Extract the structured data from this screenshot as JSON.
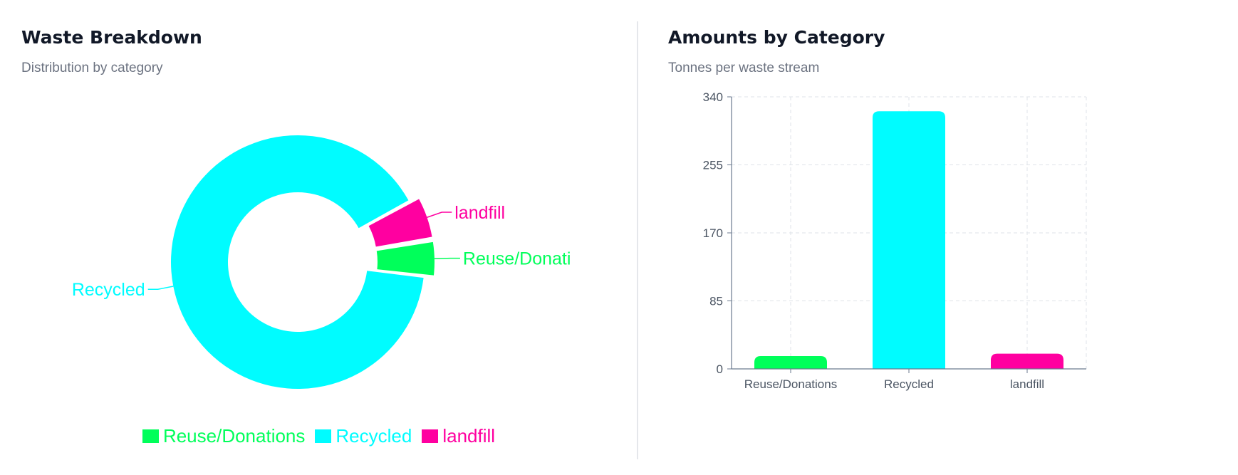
{
  "left_card": {
    "title": "Waste Breakdown",
    "subtitle": "Distribution by category"
  },
  "right_card": {
    "title": "Amounts by Category",
    "subtitle": "Tonnes per waste stream"
  },
  "colors": {
    "reuse": "#00ff5a",
    "recycled": "#00fcff",
    "landfill": "#ff00a0",
    "grid": "#dfe3e8",
    "axis": "#6b7a8f",
    "tick_text": "#4b5563"
  },
  "chart_data": [
    {
      "type": "pie",
      "variant": "donut",
      "title": "Waste Breakdown",
      "subtitle": "Distribution by category",
      "categories": [
        "Reuse/Donations",
        "Recycled",
        "landfill"
      ],
      "values": [
        16,
        322,
        19
      ],
      "slice_labels": [
        "Reuse/Donati",
        "Recycled",
        "landfill"
      ],
      "legend": {
        "position": "bottom",
        "entries": [
          "Reuse/Donations",
          "Recycled",
          "landfill"
        ]
      }
    },
    {
      "type": "bar",
      "title": "Amounts by Category",
      "subtitle": "Tonnes per waste stream",
      "categories": [
        "Reuse/Donations",
        "Recycled",
        "landfill"
      ],
      "values": [
        16,
        322,
        19
      ],
      "ylim": [
        0,
        340
      ],
      "yticks": [
        0,
        85,
        170,
        255,
        340
      ],
      "ytick_labels": [
        "0",
        "85",
        "170",
        "255",
        "340"
      ],
      "grid": true
    }
  ]
}
